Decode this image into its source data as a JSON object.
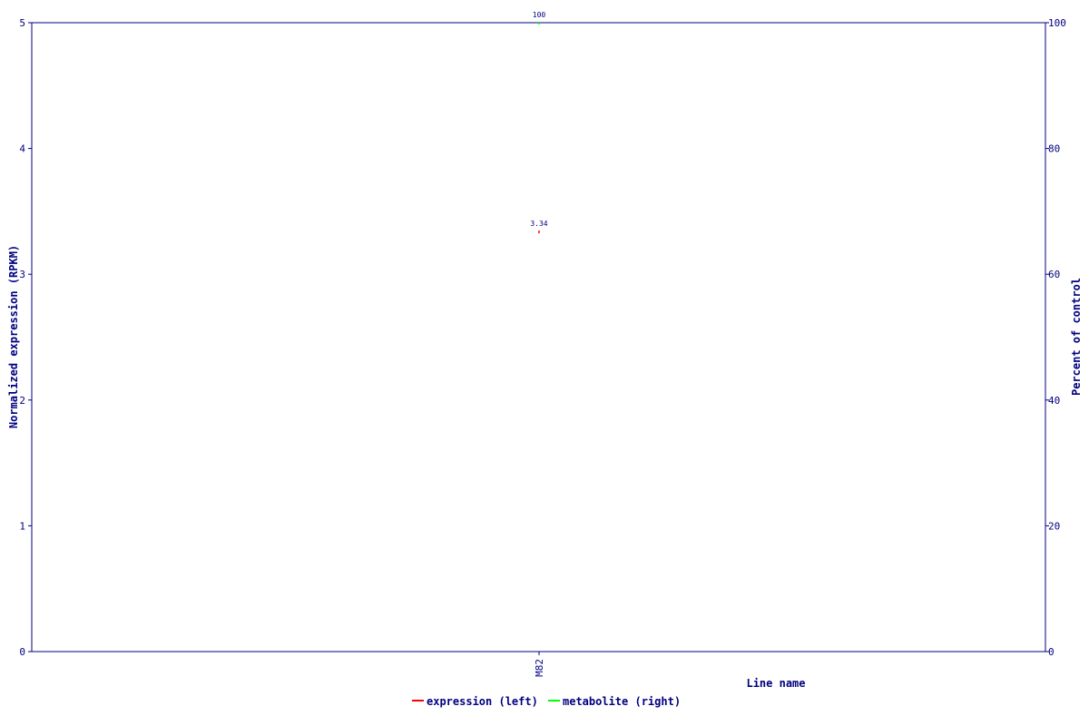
{
  "chart_data": {
    "type": "scatter",
    "categories": [
      "M82"
    ],
    "xlabel": "Line name",
    "ylabel": "Normalized expression (RPKM)",
    "y2label": "Percent of control",
    "ylim": [
      0,
      5
    ],
    "y2lim": [
      0,
      100
    ],
    "yticks": [
      0,
      1,
      2,
      3,
      4,
      5
    ],
    "y2ticks": [
      0,
      20,
      40,
      60,
      80,
      100
    ],
    "grid": false,
    "legend_placement": "bottom",
    "series": [
      {
        "name": "expression (left)",
        "axis": "left",
        "color": "#ff0000",
        "values": [
          3.34
        ],
        "labels": [
          "3.34"
        ]
      },
      {
        "name": "metabolite (right)",
        "axis": "right",
        "color": "#00ff00",
        "values": [
          100
        ],
        "labels": [
          "100"
        ]
      }
    ],
    "axis_color": "#000080"
  }
}
